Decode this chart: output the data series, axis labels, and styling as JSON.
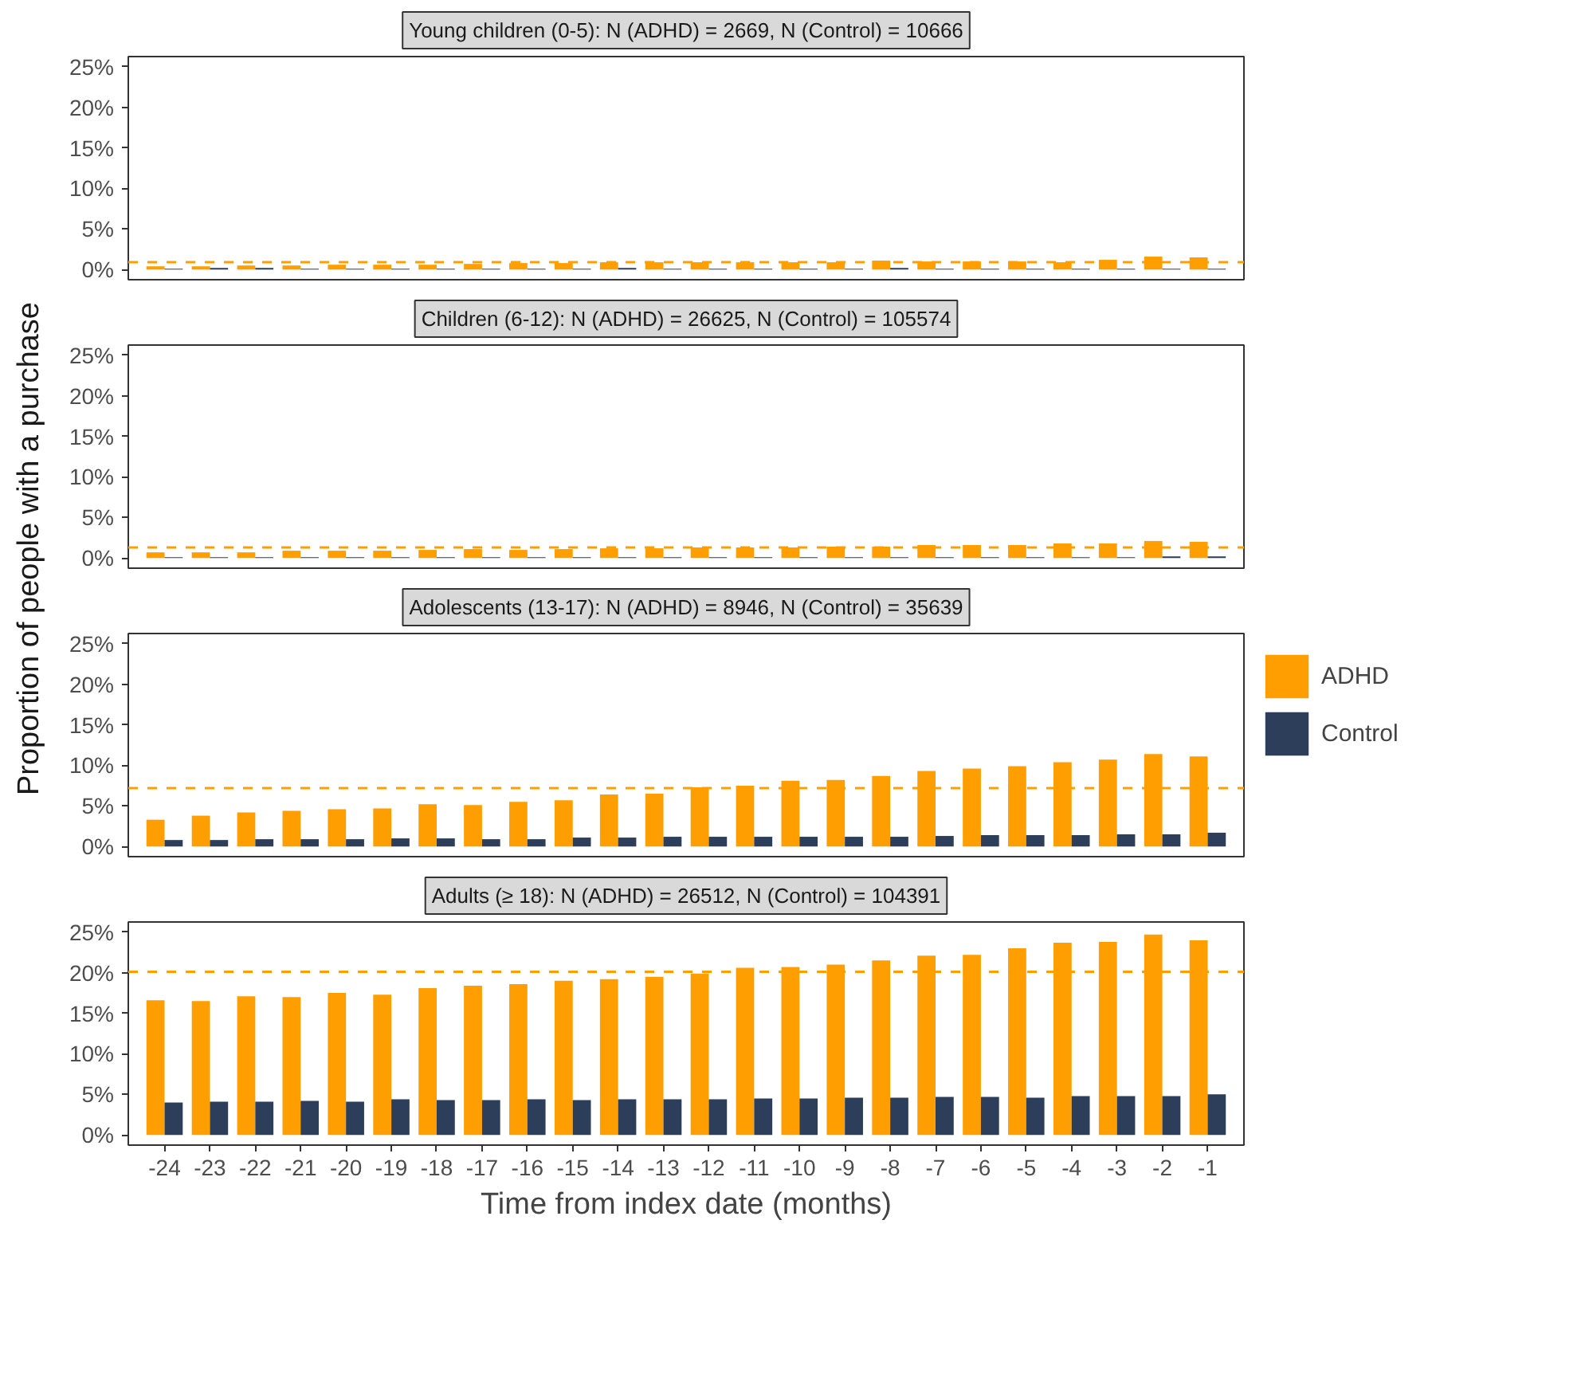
{
  "chart_data": [
    {
      "type": "bar",
      "title": "Young children (0-5): N (ADHD) = 2669, N (Control) = 10666",
      "categories": [
        "-24",
        "-23",
        "-22",
        "-21",
        "-20",
        "-19",
        "-18",
        "-17",
        "-16",
        "-15",
        "-14",
        "-13",
        "-12",
        "-11",
        "-10",
        "-9",
        "-8",
        "-7",
        "-6",
        "-5",
        "-4",
        "-3",
        "-2",
        "-1"
      ],
      "series": [
        {
          "color": "#ff9e00",
          "values": [
            0.4,
            0.4,
            0.5,
            0.5,
            0.6,
            0.6,
            0.6,
            0.7,
            0.8,
            0.8,
            0.9,
            0.9,
            0.9,
            0.9,
            0.9,
            0.9,
            1.1,
            1.0,
            1.0,
            1.0,
            0.9,
            1.2,
            1.6,
            1.5
          ]
        },
        {
          "color": "#2c3e5a",
          "values": [
            0.1,
            0.2,
            0.2,
            0.1,
            0.1,
            0.1,
            0.1,
            0.1,
            0.1,
            0.1,
            0.2,
            0.1,
            0.1,
            0.1,
            0.1,
            0.1,
            0.2,
            0.1,
            0.1,
            0.1,
            0.1,
            0.1,
            0.1,
            0.1
          ]
        }
      ],
      "ylim": [
        -1.25,
        26.25
      ],
      "yticks": [
        {
          "value": 0,
          "label": "0%"
        },
        {
          "value": 5,
          "label": "5%"
        },
        {
          "value": 10,
          "label": "10%"
        },
        {
          "value": 15,
          "label": "15%"
        },
        {
          "value": 20,
          "label": "20%"
        },
        {
          "value": 25,
          "label": "25%"
        }
      ],
      "ref_lines": [
        {
          "axis": "y",
          "value": 0.9,
          "color": "#ff9e00",
          "line_style": "dashed"
        }
      ],
      "grid": false,
      "tick_labels": "y"
    },
    {
      "type": "bar",
      "title": "Children (6-12): N (ADHD) = 26625, N (Control) = 105574",
      "categories": [
        "-24",
        "-23",
        "-22",
        "-21",
        "-20",
        "-19",
        "-18",
        "-17",
        "-16",
        "-15",
        "-14",
        "-13",
        "-12",
        "-11",
        "-10",
        "-9",
        "-8",
        "-7",
        "-6",
        "-5",
        "-4",
        "-3",
        "-2",
        "-1"
      ],
      "series": [
        {
          "color": "#ff9e00",
          "values": [
            0.7,
            0.7,
            0.7,
            0.9,
            0.9,
            0.9,
            1.0,
            1.1,
            1.0,
            1.1,
            1.2,
            1.2,
            1.3,
            1.3,
            1.3,
            1.4,
            1.4,
            1.6,
            1.6,
            1.6,
            1.8,
            1.8,
            2.1,
            2.0
          ]
        },
        {
          "color": "#2c3e5a",
          "values": [
            0.1,
            0.1,
            0.1,
            0.1,
            0.1,
            0.1,
            0.1,
            0.1,
            0.1,
            0.1,
            0.1,
            0.1,
            0.1,
            0.1,
            0.1,
            0.1,
            0.1,
            0.1,
            0.1,
            0.1,
            0.1,
            0.1,
            0.2,
            0.2
          ]
        }
      ],
      "ylim": [
        -1.25,
        26.25
      ],
      "yticks": [
        {
          "value": 0,
          "label": "0%"
        },
        {
          "value": 5,
          "label": "5%"
        },
        {
          "value": 10,
          "label": "10%"
        },
        {
          "value": 15,
          "label": "15%"
        },
        {
          "value": 20,
          "label": "20%"
        },
        {
          "value": 25,
          "label": "25%"
        }
      ],
      "ref_lines": [
        {
          "axis": "y",
          "value": 1.3,
          "color": "#ff9e00",
          "line_style": "dashed"
        }
      ],
      "grid": false,
      "tick_labels": "y"
    },
    {
      "type": "bar",
      "title": "Adolescents (13-17): N (ADHD) = 8946, N (Control) = 35639",
      "ylabel": "Proportion of people with a purchase",
      "categories": [
        "-24",
        "-23",
        "-22",
        "-21",
        "-20",
        "-19",
        "-18",
        "-17",
        "-16",
        "-15",
        "-14",
        "-13",
        "-12",
        "-11",
        "-10",
        "-9",
        "-8",
        "-7",
        "-6",
        "-5",
        "-4",
        "-3",
        "-2",
        "-1"
      ],
      "series": [
        {
          "name": "ADHD",
          "color": "#ff9e00",
          "values": [
            3.3,
            3.8,
            4.2,
            4.4,
            4.6,
            4.7,
            5.2,
            5.1,
            5.5,
            5.7,
            6.4,
            6.5,
            7.3,
            7.5,
            8.1,
            8.2,
            8.7,
            9.3,
            9.6,
            9.9,
            10.4,
            10.7,
            11.4,
            11.1
          ]
        },
        {
          "name": "Control",
          "color": "#2c3e5a",
          "values": [
            0.8,
            0.8,
            0.9,
            0.9,
            0.9,
            1.0,
            1.0,
            0.9,
            0.9,
            1.1,
            1.1,
            1.2,
            1.2,
            1.2,
            1.2,
            1.2,
            1.2,
            1.3,
            1.4,
            1.4,
            1.4,
            1.5,
            1.5,
            1.7
          ]
        }
      ],
      "ylim": [
        -1.25,
        26.25
      ],
      "yticks": [
        {
          "value": 0,
          "label": "0%"
        },
        {
          "value": 5,
          "label": "5%"
        },
        {
          "value": 10,
          "label": "10%"
        },
        {
          "value": 15,
          "label": "15%"
        },
        {
          "value": 20,
          "label": "20%"
        },
        {
          "value": 25,
          "label": "25%"
        }
      ],
      "ref_lines": [
        {
          "axis": "y",
          "value": 7.2,
          "color": "#ff9e00",
          "line_style": "dashed"
        }
      ],
      "grid": false,
      "tick_labels": "y",
      "legend": "right"
    },
    {
      "type": "bar",
      "title": "Adults (≥ 18): N (ADHD) = 26512, N (Control) = 104391",
      "xlabel": "Time from index date (months)",
      "categories": [
        "-24",
        "-23",
        "-22",
        "-21",
        "-20",
        "-19",
        "-18",
        "-17",
        "-16",
        "-15",
        "-14",
        "-13",
        "-12",
        "-11",
        "-10",
        "-9",
        "-8",
        "-7",
        "-6",
        "-5",
        "-4",
        "-3",
        "-2",
        "-1"
      ],
      "series": [
        {
          "color": "#ff9e00",
          "values": [
            16.6,
            16.5,
            17.1,
            17.0,
            17.5,
            17.3,
            18.1,
            18.4,
            18.6,
            19.0,
            19.2,
            19.5,
            19.9,
            20.6,
            20.7,
            21.0,
            21.5,
            22.1,
            22.2,
            23.0,
            23.7,
            23.8,
            24.7,
            24.0
          ]
        },
        {
          "color": "#2c3e5a",
          "values": [
            4.0,
            4.1,
            4.1,
            4.2,
            4.1,
            4.4,
            4.3,
            4.3,
            4.4,
            4.3,
            4.4,
            4.4,
            4.4,
            4.5,
            4.5,
            4.6,
            4.6,
            4.7,
            4.7,
            4.6,
            4.8,
            4.8,
            4.8,
            5.0
          ]
        }
      ],
      "ylim": [
        -1.25,
        26.25
      ],
      "yticks": [
        {
          "value": 0,
          "label": "0%"
        },
        {
          "value": 5,
          "label": "5%"
        },
        {
          "value": 10,
          "label": "10%"
        },
        {
          "value": 15,
          "label": "15%"
        },
        {
          "value": 20,
          "label": "20%"
        },
        {
          "value": 25,
          "label": "25%"
        }
      ],
      "ref_lines": [
        {
          "axis": "y",
          "value": 20.1,
          "color": "#ff9e00",
          "line_style": "dashed"
        }
      ],
      "grid": false
    }
  ]
}
